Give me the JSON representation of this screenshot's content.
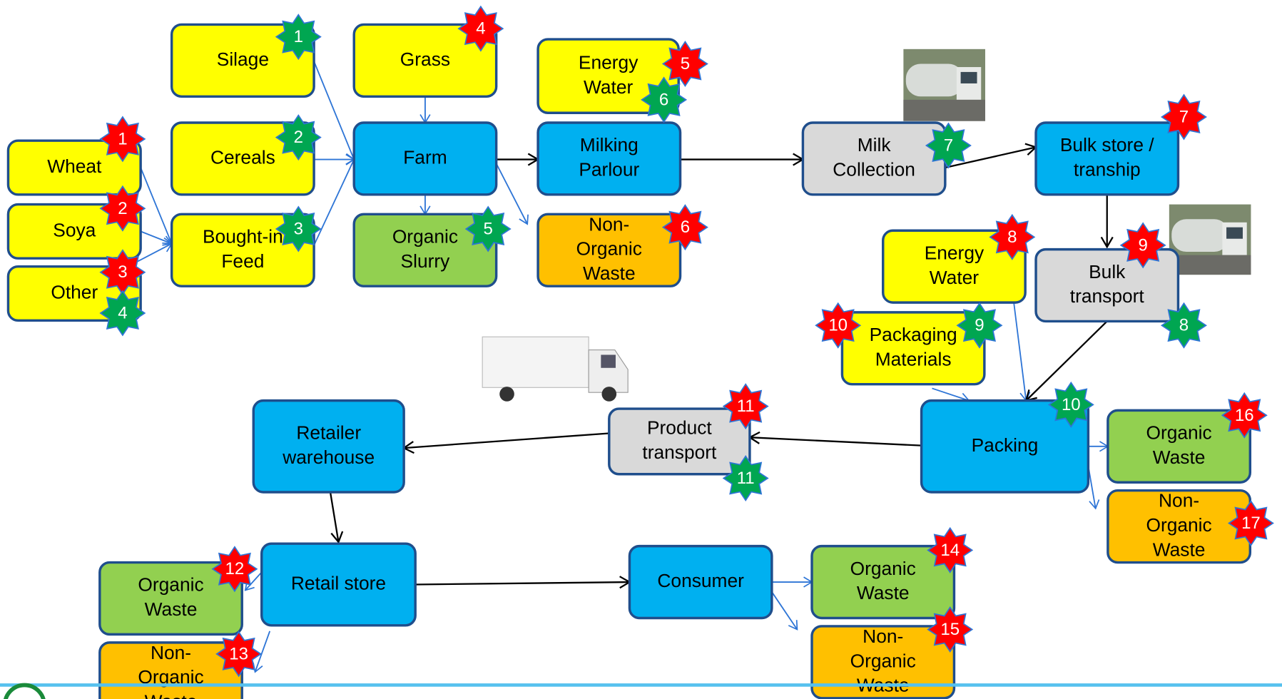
{
  "nodes": [
    {
      "lines": [
        "Wheat"
      ]
    },
    {
      "lines": [
        "Soya"
      ]
    },
    {
      "lines": [
        "Other"
      ]
    },
    {
      "lines": [
        "Silage"
      ]
    },
    {
      "lines": [
        "Cereals"
      ]
    },
    {
      "lines": [
        "Bought-in",
        "Feed"
      ]
    },
    {
      "lines": [
        "Grass"
      ]
    },
    {
      "lines": [
        "Energy",
        "Water"
      ]
    },
    {
      "lines": [
        "Energy",
        "Water"
      ]
    },
    {
      "lines": [
        "Packaging",
        "Materials"
      ]
    },
    {
      "lines": [
        "Farm"
      ]
    },
    {
      "lines": [
        "Milking",
        "Parlour"
      ]
    },
    {
      "lines": [
        "Bulk store /",
        "tranship"
      ]
    },
    {
      "lines": [
        "Packing"
      ]
    },
    {
      "lines": [
        "Retailer",
        "warehouse"
      ]
    },
    {
      "lines": [
        "Retail store"
      ]
    },
    {
      "lines": [
        "Consumer"
      ]
    },
    {
      "lines": [
        "Milk",
        "Collection"
      ]
    },
    {
      "lines": [
        "Bulk",
        "transport"
      ]
    },
    {
      "lines": [
        "Product",
        "transport"
      ]
    },
    {
      "lines": [
        "Organic",
        "Slurry"
      ]
    },
    {
      "lines": [
        "Organic",
        "Waste"
      ]
    },
    {
      "lines": [
        "Organic",
        "Waste"
      ]
    },
    {
      "lines": [
        "Organic",
        "Waste"
      ]
    },
    {
      "lines": [
        "Non-",
        "Organic",
        "Waste"
      ]
    },
    {
      "lines": [
        "Non-",
        "Organic",
        "Waste"
      ]
    },
    {
      "lines": [
        "Non-",
        "Organic",
        "Waste"
      ]
    },
    {
      "lines": [
        "Non-",
        "Organic",
        "Waste"
      ]
    }
  ],
  "badges": [
    {
      "label": 1
    },
    {
      "label": 1
    },
    {
      "label": 4
    },
    {
      "label": 2
    },
    {
      "label": 5
    },
    {
      "label": 6
    },
    {
      "label": 2
    },
    {
      "label": 3
    },
    {
      "label": 3
    },
    {
      "label": 4
    },
    {
      "label": 5
    },
    {
      "label": 6
    },
    {
      "label": 7
    },
    {
      "label": 7
    },
    {
      "label": 8
    },
    {
      "label": 9
    },
    {
      "label": 8
    },
    {
      "label": 9
    },
    {
      "label": 10
    },
    {
      "label": 10
    },
    {
      "label": 11
    },
    {
      "label": 11
    },
    {
      "label": 16
    },
    {
      "label": 17
    },
    {
      "label": 12
    },
    {
      "label": 13
    },
    {
      "label": 14
    },
    {
      "label": 15
    }
  ]
}
